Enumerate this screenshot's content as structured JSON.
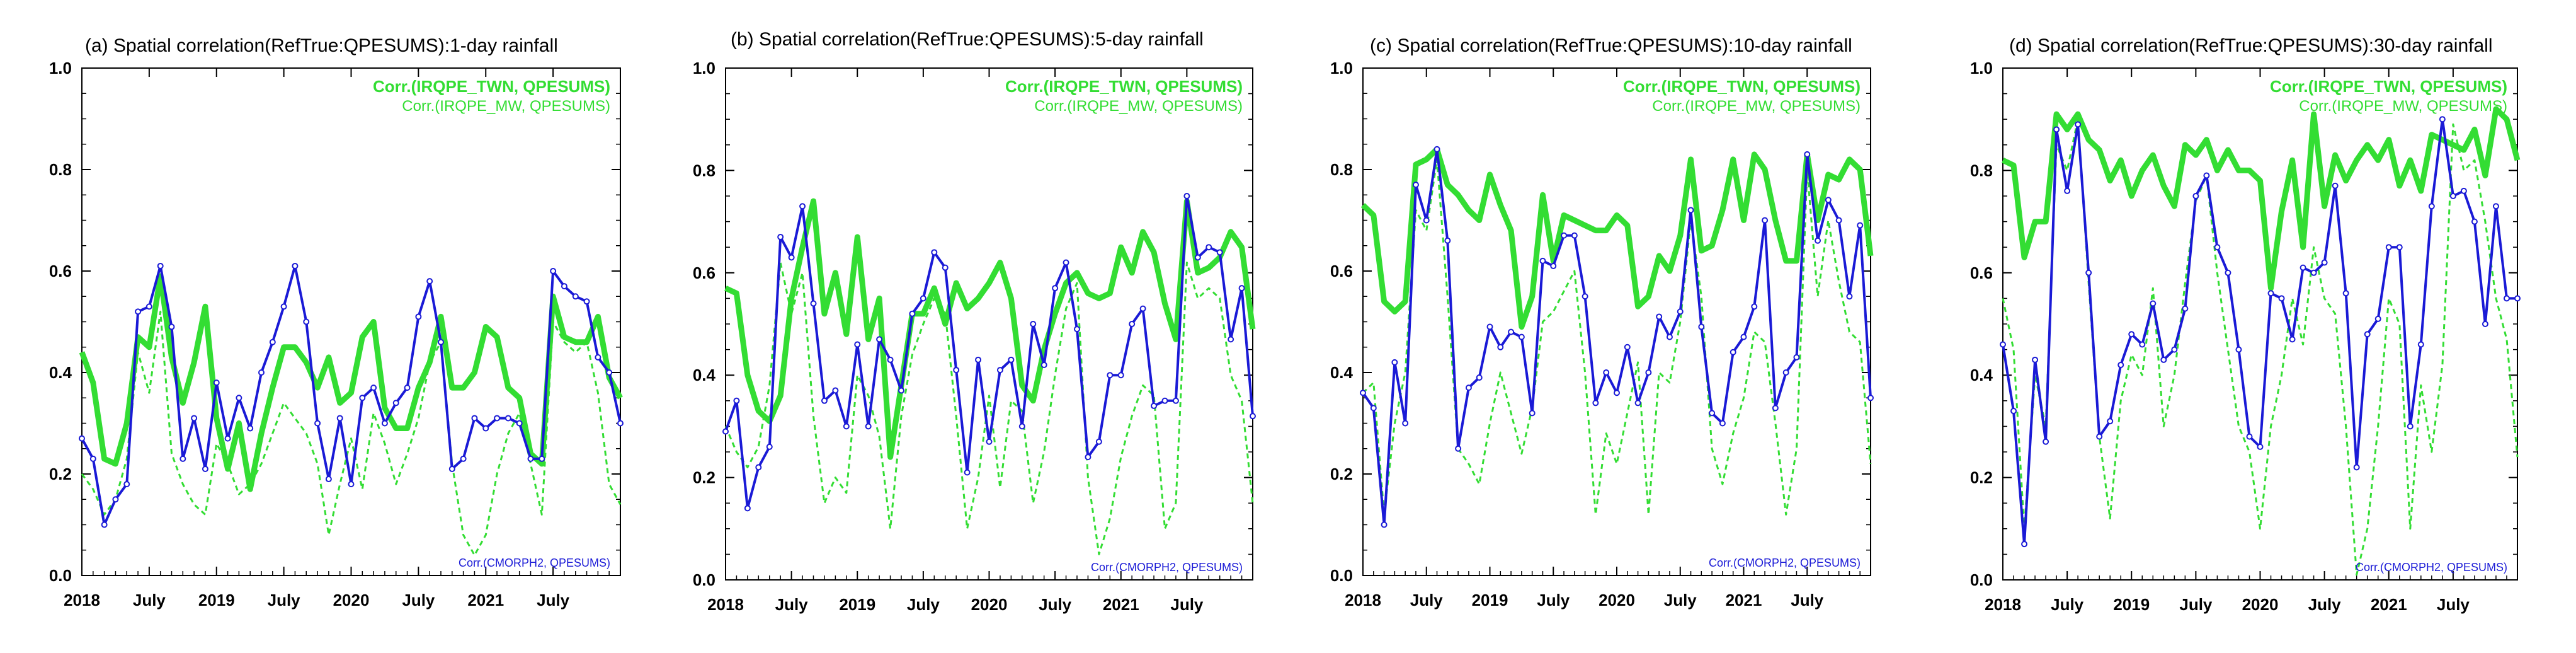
{
  "chart_data": [
    {
      "type": "line",
      "title": "(a) Spatial correlation(RefTrue:QPESUMS):1-day rainfall",
      "ylim": [
        0,
        1.0
      ],
      "yticks": [
        "0.0",
        "0.2",
        "0.4",
        "0.6",
        "0.8",
        "1.0"
      ],
      "xticks": [
        "2018",
        "July",
        "2019",
        "July",
        "2020",
        "July",
        "2021",
        "July"
      ],
      "legend": {
        "position": "top-right / bottom-right"
      },
      "series": [
        {
          "name": "Corr.(IRQPE_TWN, QPESUMS)",
          "color": "#33dd33",
          "style": "thick-solid",
          "values": [
            0.44,
            0.38,
            0.23,
            0.22,
            0.3,
            0.47,
            0.45,
            0.59,
            0.43,
            0.34,
            0.42,
            0.53,
            0.31,
            0.21,
            0.3,
            0.17,
            0.28,
            0.37,
            0.45,
            0.45,
            0.42,
            0.37,
            0.43,
            0.34,
            0.36,
            0.47,
            0.5,
            0.33,
            0.29,
            0.29,
            0.37,
            0.42,
            0.51,
            0.37,
            0.37,
            0.4,
            0.49,
            0.47,
            0.37,
            0.35,
            0.24,
            0.22,
            0.55,
            0.47,
            0.46,
            0.46,
            0.51,
            0.39,
            0.35
          ]
        },
        {
          "name": "Corr.(IRQPE_MW, QPESUMS)",
          "color": "#33dd33",
          "style": "dashed",
          "values": [
            0.2,
            0.17,
            0.12,
            0.15,
            0.23,
            0.44,
            0.36,
            0.52,
            0.24,
            0.18,
            0.14,
            0.12,
            0.26,
            0.22,
            0.16,
            0.18,
            0.22,
            0.28,
            0.34,
            0.31,
            0.28,
            0.22,
            0.08,
            0.18,
            0.27,
            0.17,
            0.32,
            0.26,
            0.18,
            0.24,
            0.31,
            0.42,
            0.46,
            0.22,
            0.08,
            0.04,
            0.08,
            0.2,
            0.28,
            0.32,
            0.22,
            0.12,
            0.5,
            0.46,
            0.44,
            0.46,
            0.36,
            0.18,
            0.14
          ]
        },
        {
          "name": "Corr.(CMORPH2, QPESUMS)",
          "color": "#1a1ad6",
          "style": "solid-markers",
          "values": [
            0.27,
            0.23,
            0.1,
            0.15,
            0.18,
            0.52,
            0.53,
            0.61,
            0.49,
            0.23,
            0.31,
            0.21,
            0.38,
            0.27,
            0.35,
            0.29,
            0.4,
            0.46,
            0.53,
            0.61,
            0.5,
            0.3,
            0.19,
            0.31,
            0.18,
            0.35,
            0.37,
            0.3,
            0.34,
            0.37,
            0.51,
            0.58,
            0.46,
            0.21,
            0.23,
            0.31,
            0.29,
            0.31,
            0.31,
            0.3,
            0.23,
            0.23,
            0.6,
            0.57,
            0.55,
            0.54,
            0.43,
            0.4,
            0.3
          ]
        }
      ]
    },
    {
      "type": "line",
      "title": "(b) Spatial correlation(RefTrue:QPESUMS):5-day rainfall",
      "ylim": [
        0,
        1.0
      ],
      "yticks": [
        "0.0",
        "0.2",
        "0.4",
        "0.6",
        "0.8",
        "1.0"
      ],
      "xticks": [
        "2018",
        "July",
        "2019",
        "July",
        "2020",
        "July",
        "2021",
        "July"
      ],
      "legend": {
        "position": "top-right / bottom-right"
      },
      "series": [
        {
          "name": "Corr.(IRQPE_TWN, QPESUMS)",
          "color": "#33dd33",
          "style": "thick-solid",
          "values": [
            0.57,
            0.56,
            0.4,
            0.33,
            0.31,
            0.36,
            0.55,
            0.65,
            0.74,
            0.52,
            0.6,
            0.48,
            0.67,
            0.47,
            0.55,
            0.24,
            0.38,
            0.52,
            0.52,
            0.57,
            0.5,
            0.58,
            0.53,
            0.55,
            0.58,
            0.62,
            0.55,
            0.38,
            0.35,
            0.45,
            0.52,
            0.58,
            0.6,
            0.56,
            0.55,
            0.56,
            0.65,
            0.6,
            0.68,
            0.64,
            0.54,
            0.47,
            0.74,
            0.6,
            0.61,
            0.63,
            0.68,
            0.65,
            0.49
          ]
        },
        {
          "name": "Corr.(IRQPE_MW, QPESUMS)",
          "color": "#33dd33",
          "style": "dashed",
          "values": [
            0.3,
            0.25,
            0.22,
            0.26,
            0.38,
            0.62,
            0.52,
            0.6,
            0.32,
            0.15,
            0.2,
            0.17,
            0.4,
            0.36,
            0.28,
            0.1,
            0.32,
            0.44,
            0.5,
            0.55,
            0.52,
            0.32,
            0.1,
            0.2,
            0.36,
            0.18,
            0.35,
            0.33,
            0.15,
            0.25,
            0.4,
            0.53,
            0.58,
            0.2,
            0.05,
            0.12,
            0.24,
            0.32,
            0.38,
            0.36,
            0.1,
            0.15,
            0.62,
            0.55,
            0.57,
            0.55,
            0.4,
            0.35,
            0.15
          ]
        },
        {
          "name": "Corr.(CMORPH2, QPESUMS)",
          "color": "#1a1ad6",
          "style": "solid-markers",
          "values": [
            0.29,
            0.35,
            0.14,
            0.22,
            0.26,
            0.67,
            0.63,
            0.73,
            0.54,
            0.35,
            0.37,
            0.3,
            0.46,
            0.3,
            0.47,
            0.43,
            0.37,
            0.52,
            0.55,
            0.64,
            0.61,
            0.41,
            0.21,
            0.43,
            0.27,
            0.41,
            0.43,
            0.3,
            0.5,
            0.42,
            0.57,
            0.62,
            0.49,
            0.24,
            0.27,
            0.4,
            0.4,
            0.5,
            0.53,
            0.34,
            0.35,
            0.35,
            0.75,
            0.63,
            0.65,
            0.64,
            0.47,
            0.57,
            0.32
          ]
        }
      ]
    },
    {
      "type": "line",
      "title": "(c) Spatial correlation(RefTrue:QPESUMS):10-day rainfall",
      "ylim": [
        0,
        1.0
      ],
      "yticks": [
        "0.0",
        "0.2",
        "0.4",
        "0.6",
        "0.8",
        "1.0"
      ],
      "xticks": [
        "2018",
        "July",
        "2019",
        "July",
        "2020",
        "July",
        "2021",
        "July"
      ],
      "legend": {
        "position": "top-right / bottom-right"
      },
      "series": [
        {
          "name": "Corr.(IRQPE_TWN, QPESUMS)",
          "color": "#33dd33",
          "style": "thick-solid",
          "values": [
            0.73,
            0.71,
            0.54,
            0.52,
            0.54,
            0.81,
            0.82,
            0.84,
            0.77,
            0.75,
            0.72,
            0.7,
            0.79,
            0.73,
            0.68,
            0.49,
            0.55,
            0.75,
            0.62,
            0.71,
            0.7,
            0.69,
            0.68,
            0.68,
            0.71,
            0.69,
            0.53,
            0.55,
            0.63,
            0.6,
            0.67,
            0.82,
            0.64,
            0.65,
            0.72,
            0.82,
            0.7,
            0.83,
            0.8,
            0.7,
            0.62,
            0.62,
            0.83,
            0.7,
            0.79,
            0.78,
            0.82,
            0.8,
            0.63
          ]
        },
        {
          "name": "Corr.(IRQPE_MW, QPESUMS)",
          "color": "#33dd33",
          "style": "dashed",
          "values": [
            0.36,
            0.38,
            0.12,
            0.3,
            0.4,
            0.72,
            0.68,
            0.82,
            0.55,
            0.25,
            0.22,
            0.18,
            0.3,
            0.4,
            0.32,
            0.24,
            0.33,
            0.5,
            0.52,
            0.56,
            0.6,
            0.4,
            0.12,
            0.28,
            0.22,
            0.32,
            0.42,
            0.12,
            0.4,
            0.38,
            0.5,
            0.7,
            0.55,
            0.25,
            0.18,
            0.28,
            0.35,
            0.48,
            0.46,
            0.3,
            0.12,
            0.25,
            0.8,
            0.55,
            0.7,
            0.58,
            0.48,
            0.46,
            0.22
          ]
        },
        {
          "name": "Corr.(CMORPH2, QPESUMS)",
          "color": "#1a1ad6",
          "style": "solid-markers",
          "values": [
            0.36,
            0.33,
            0.1,
            0.42,
            0.3,
            0.77,
            0.7,
            0.84,
            0.66,
            0.25,
            0.37,
            0.39,
            0.49,
            0.45,
            0.48,
            0.47,
            0.32,
            0.62,
            0.61,
            0.67,
            0.67,
            0.55,
            0.34,
            0.4,
            0.36,
            0.45,
            0.34,
            0.4,
            0.51,
            0.47,
            0.52,
            0.72,
            0.49,
            0.32,
            0.3,
            0.44,
            0.47,
            0.53,
            0.7,
            0.33,
            0.4,
            0.43,
            0.83,
            0.66,
            0.74,
            0.7,
            0.55,
            0.69,
            0.35
          ]
        }
      ]
    },
    {
      "type": "line",
      "title": "(d) Spatial correlation(RefTrue:QPESUMS):30-day rainfall",
      "ylim": [
        0,
        1.0
      ],
      "yticks": [
        "0.0",
        "0.2",
        "0.4",
        "0.6",
        "0.8",
        "1.0"
      ],
      "xticks": [
        "2018",
        "July",
        "2019",
        "July",
        "2020",
        "July",
        "2021",
        "July"
      ],
      "legend": {
        "position": "top-right / bottom-right"
      },
      "series": [
        {
          "name": "Corr.(IRQPE_TWN, QPESUMS)",
          "color": "#33dd33",
          "style": "thick-solid",
          "values": [
            0.82,
            0.81,
            0.63,
            0.7,
            0.7,
            0.91,
            0.88,
            0.91,
            0.86,
            0.84,
            0.78,
            0.82,
            0.75,
            0.8,
            0.83,
            0.77,
            0.73,
            0.85,
            0.83,
            0.86,
            0.8,
            0.84,
            0.8,
            0.8,
            0.78,
            0.57,
            0.72,
            0.82,
            0.65,
            0.91,
            0.73,
            0.83,
            0.78,
            0.82,
            0.85,
            0.82,
            0.86,
            0.77,
            0.82,
            0.76,
            0.87,
            0.86,
            0.85,
            0.84,
            0.88,
            0.79,
            0.92,
            0.9,
            0.82
          ]
        },
        {
          "name": "Corr.(IRQPE_MW, QPESUMS)",
          "color": "#33dd33",
          "style": "dashed",
          "values": [
            0.55,
            0.45,
            0.1,
            0.4,
            0.3,
            0.85,
            0.8,
            0.9,
            0.58,
            0.28,
            0.12,
            0.35,
            0.44,
            0.4,
            0.57,
            0.3,
            0.4,
            0.58,
            0.74,
            0.79,
            0.6,
            0.45,
            0.3,
            0.25,
            0.1,
            0.3,
            0.4,
            0.55,
            0.46,
            0.65,
            0.55,
            0.52,
            0.3,
            0.01,
            0.1,
            0.3,
            0.55,
            0.5,
            0.1,
            0.38,
            0.25,
            0.42,
            0.89,
            0.8,
            0.82,
            0.7,
            0.55,
            0.47,
            0.24
          ]
        },
        {
          "name": "Corr.(CMORPH2, QPESUMS)",
          "color": "#1a1ad6",
          "style": "solid-markers",
          "values": [
            0.46,
            0.33,
            0.07,
            0.43,
            0.27,
            0.88,
            0.76,
            0.89,
            0.6,
            0.28,
            0.31,
            0.42,
            0.48,
            0.46,
            0.54,
            0.43,
            0.45,
            0.53,
            0.75,
            0.79,
            0.65,
            0.6,
            0.45,
            0.28,
            0.26,
            0.56,
            0.55,
            0.47,
            0.61,
            0.6,
            0.62,
            0.77,
            0.56,
            0.22,
            0.48,
            0.51,
            0.65,
            0.65,
            0.3,
            0.46,
            0.73,
            0.9,
            0.75,
            0.76,
            0.7,
            0.5,
            0.73,
            0.55,
            0.55
          ]
        }
      ]
    }
  ]
}
